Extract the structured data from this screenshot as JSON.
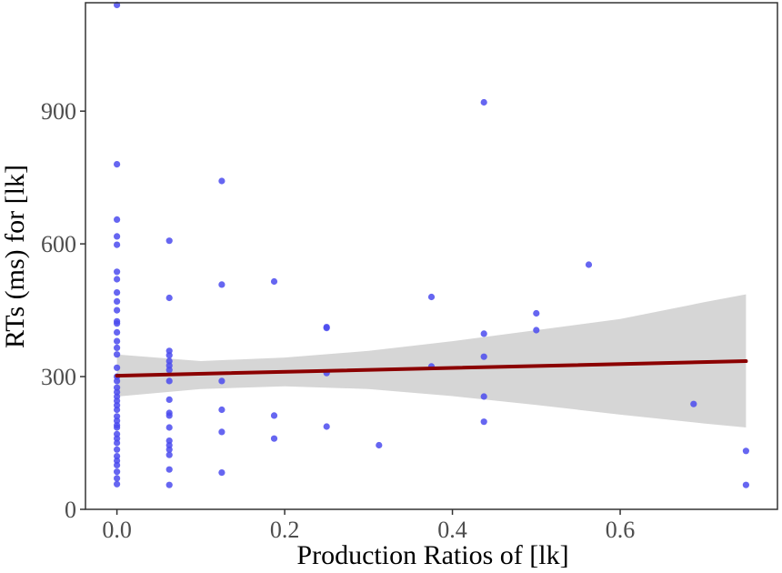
{
  "chart_data": {
    "type": "scatter",
    "title": "",
    "xlabel": "Production Ratios of [lk]",
    "ylabel": "RTs (ms) for [lk]",
    "xlim": [
      -0.0375,
      0.7875
    ],
    "ylim": [
      0,
      1145
    ],
    "xticks": [
      0.0,
      0.2,
      0.4,
      0.6
    ],
    "xtick_labels": [
      "0.0",
      "0.2",
      "0.4",
      "0.6"
    ],
    "yticks": [
      0,
      300,
      600,
      900
    ],
    "ytick_labels": [
      "0",
      "300",
      "600",
      "900"
    ],
    "grid": false,
    "legend": "none",
    "colors": {
      "points": "#4b4bee",
      "fit_line": "#8b0000",
      "ribbon": "#c8c8c8",
      "frame": "#333333"
    },
    "series": [
      {
        "points": [
          {
            "x": 0.0,
            "y": 1140
          },
          {
            "x": 0.0,
            "y": 780
          },
          {
            "x": 0.0,
            "y": 655
          },
          {
            "x": 0.0,
            "y": 617
          },
          {
            "x": 0.0,
            "y": 598
          },
          {
            "x": 0.0,
            "y": 537
          },
          {
            "x": 0.0,
            "y": 520
          },
          {
            "x": 0.0,
            "y": 490
          },
          {
            "x": 0.0,
            "y": 470
          },
          {
            "x": 0.0,
            "y": 450
          },
          {
            "x": 0.0,
            "y": 425
          },
          {
            "x": 0.0,
            "y": 420
          },
          {
            "x": 0.0,
            "y": 400
          },
          {
            "x": 0.0,
            "y": 380
          },
          {
            "x": 0.0,
            "y": 365
          },
          {
            "x": 0.0,
            "y": 350
          },
          {
            "x": 0.0,
            "y": 320
          },
          {
            "x": 0.0,
            "y": 300
          },
          {
            "x": 0.0,
            "y": 290
          },
          {
            "x": 0.0,
            "y": 275
          },
          {
            "x": 0.0,
            "y": 265
          },
          {
            "x": 0.0,
            "y": 255
          },
          {
            "x": 0.0,
            "y": 245
          },
          {
            "x": 0.0,
            "y": 235
          },
          {
            "x": 0.0,
            "y": 225
          },
          {
            "x": 0.0,
            "y": 210
          },
          {
            "x": 0.0,
            "y": 200
          },
          {
            "x": 0.0,
            "y": 190
          },
          {
            "x": 0.0,
            "y": 185
          },
          {
            "x": 0.0,
            "y": 170
          },
          {
            "x": 0.0,
            "y": 160
          },
          {
            "x": 0.0,
            "y": 150
          },
          {
            "x": 0.0,
            "y": 135
          },
          {
            "x": 0.0,
            "y": 120
          },
          {
            "x": 0.0,
            "y": 110
          },
          {
            "x": 0.0,
            "y": 100
          },
          {
            "x": 0.0,
            "y": 85
          },
          {
            "x": 0.0,
            "y": 70
          },
          {
            "x": 0.0,
            "y": 57
          },
          {
            "x": 0.0625,
            "y": 607
          },
          {
            "x": 0.0625,
            "y": 478
          },
          {
            "x": 0.0625,
            "y": 358
          },
          {
            "x": 0.0625,
            "y": 348
          },
          {
            "x": 0.0625,
            "y": 335
          },
          {
            "x": 0.0625,
            "y": 325
          },
          {
            "x": 0.0625,
            "y": 315
          },
          {
            "x": 0.0625,
            "y": 290
          },
          {
            "x": 0.0625,
            "y": 248
          },
          {
            "x": 0.0625,
            "y": 218
          },
          {
            "x": 0.0625,
            "y": 212
          },
          {
            "x": 0.0625,
            "y": 185
          },
          {
            "x": 0.0625,
            "y": 155
          },
          {
            "x": 0.0625,
            "y": 145
          },
          {
            "x": 0.0625,
            "y": 135
          },
          {
            "x": 0.0625,
            "y": 123
          },
          {
            "x": 0.0625,
            "y": 90
          },
          {
            "x": 0.0625,
            "y": 55
          },
          {
            "x": 0.125,
            "y": 742
          },
          {
            "x": 0.125,
            "y": 508
          },
          {
            "x": 0.125,
            "y": 290
          },
          {
            "x": 0.125,
            "y": 225
          },
          {
            "x": 0.125,
            "y": 175
          },
          {
            "x": 0.125,
            "y": 83
          },
          {
            "x": 0.1875,
            "y": 515
          },
          {
            "x": 0.1875,
            "y": 212
          },
          {
            "x": 0.1875,
            "y": 160
          },
          {
            "x": 0.25,
            "y": 412
          },
          {
            "x": 0.25,
            "y": 410
          },
          {
            "x": 0.25,
            "y": 308
          },
          {
            "x": 0.25,
            "y": 187
          },
          {
            "x": 0.3125,
            "y": 145
          },
          {
            "x": 0.375,
            "y": 480
          },
          {
            "x": 0.375,
            "y": 323
          },
          {
            "x": 0.4375,
            "y": 920
          },
          {
            "x": 0.4375,
            "y": 397
          },
          {
            "x": 0.4375,
            "y": 345
          },
          {
            "x": 0.4375,
            "y": 255
          },
          {
            "x": 0.4375,
            "y": 198
          },
          {
            "x": 0.5,
            "y": 443
          },
          {
            "x": 0.5,
            "y": 405
          },
          {
            "x": 0.5625,
            "y": 553
          },
          {
            "x": 0.6875,
            "y": 238
          },
          {
            "x": 0.75,
            "y": 132
          },
          {
            "x": 0.75,
            "y": 55
          }
        ]
      }
    ],
    "fit": {
      "method": "linear",
      "x": [
        0.0,
        0.75
      ],
      "y": [
        302,
        335
      ],
      "ci_x": [
        0.0,
        0.1,
        0.2,
        0.3,
        0.4,
        0.5,
        0.6,
        0.7,
        0.75
      ],
      "ci_low": [
        255,
        272,
        278,
        272,
        256,
        236,
        214,
        194,
        185
      ],
      "ci_high": [
        350,
        335,
        343,
        358,
        380,
        405,
        430,
        468,
        486
      ]
    }
  }
}
